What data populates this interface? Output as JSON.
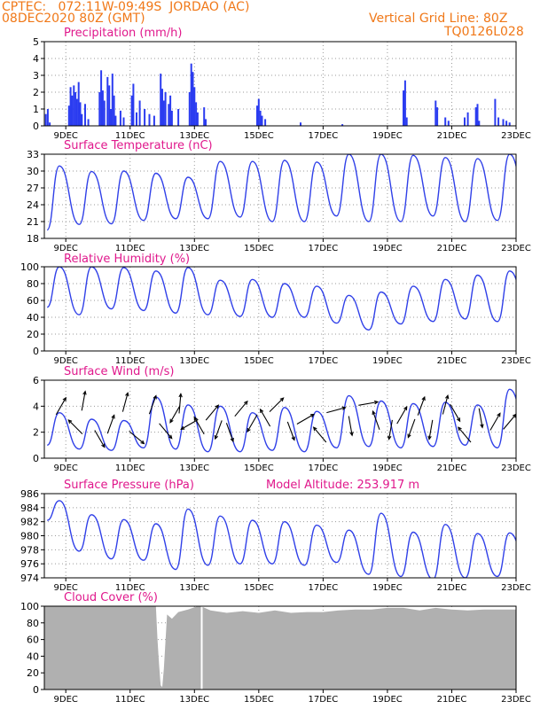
{
  "header": {
    "line1": "CPTEC:   072:11W-09:49S  JORDAO (AC)",
    "line2": "08DEC2020 80Z (GMT)",
    "right1": "Vertical Grid Line: 80Z",
    "right2": "TQ0126L028"
  },
  "colors": {
    "header": "#f07818",
    "title": "#e0188c",
    "precip": "#2b3cf0",
    "line": "#3040e8",
    "cloud": "#b0b0b0",
    "arrow": "#000000"
  },
  "x_axis": {
    "labels": [
      "9DEC",
      "11DEC",
      "13DEC",
      "15DEC",
      "17DEC",
      "19DEC",
      "21DEC",
      "23DEC"
    ],
    "label_days": [
      9,
      11,
      13,
      15,
      17,
      19,
      21,
      23
    ],
    "start_day": 8.333,
    "end_day": 23.0
  },
  "chart_data": [
    {
      "id": "precip",
      "type": "bar",
      "title": "Precipitation (mm/h)",
      "ylim": [
        0,
        5
      ],
      "yticks": [
        "0",
        "1",
        "2",
        "3",
        "4",
        "5"
      ],
      "points": [
        [
          8.38,
          0.7
        ],
        [
          8.44,
          1.0
        ],
        [
          8.5,
          0.2
        ],
        [
          9.1,
          1.2
        ],
        [
          9.15,
          2.3
        ],
        [
          9.2,
          1.8
        ],
        [
          9.25,
          2.4
        ],
        [
          9.3,
          2.0
        ],
        [
          9.35,
          1.6
        ],
        [
          9.4,
          2.6
        ],
        [
          9.45,
          1.4
        ],
        [
          9.5,
          0.7
        ],
        [
          9.6,
          1.3
        ],
        [
          9.7,
          0.4
        ],
        [
          10.05,
          2.0
        ],
        [
          10.1,
          3.3
        ],
        [
          10.15,
          2.1
        ],
        [
          10.2,
          1.5
        ],
        [
          10.3,
          2.9
        ],
        [
          10.35,
          2.4
        ],
        [
          10.4,
          1.0
        ],
        [
          10.45,
          3.1
        ],
        [
          10.5,
          1.8
        ],
        [
          10.55,
          0.6
        ],
        [
          10.7,
          0.9
        ],
        [
          10.8,
          0.5
        ],
        [
          11.05,
          1.8
        ],
        [
          11.1,
          2.5
        ],
        [
          11.2,
          0.8
        ],
        [
          11.3,
          1.5
        ],
        [
          11.45,
          1.0
        ],
        [
          11.6,
          0.7
        ],
        [
          11.75,
          0.6
        ],
        [
          11.95,
          3.1
        ],
        [
          12.0,
          2.2
        ],
        [
          12.05,
          1.5
        ],
        [
          12.1,
          2.0
        ],
        [
          12.2,
          1.3
        ],
        [
          12.25,
          1.8
        ],
        [
          12.3,
          0.9
        ],
        [
          12.5,
          1.0
        ],
        [
          12.85,
          2.0
        ],
        [
          12.9,
          3.7
        ],
        [
          12.95,
          3.2
        ],
        [
          13.0,
          2.3
        ],
        [
          13.05,
          1.4
        ],
        [
          13.1,
          0.8
        ],
        [
          13.3,
          1.1
        ],
        [
          13.35,
          0.4
        ],
        [
          14.95,
          1.2
        ],
        [
          15.0,
          1.6
        ],
        [
          15.05,
          0.9
        ],
        [
          15.1,
          0.6
        ],
        [
          15.2,
          0.4
        ],
        [
          16.3,
          0.2
        ],
        [
          17.6,
          0.1
        ],
        [
          19.5,
          2.1
        ],
        [
          19.55,
          2.7
        ],
        [
          19.6,
          0.5
        ],
        [
          20.5,
          1.5
        ],
        [
          20.55,
          1.1
        ],
        [
          20.8,
          0.5
        ],
        [
          20.9,
          0.3
        ],
        [
          21.4,
          0.5
        ],
        [
          21.5,
          0.8
        ],
        [
          21.75,
          1.1
        ],
        [
          21.8,
          1.3
        ],
        [
          21.85,
          0.3
        ],
        [
          22.35,
          1.6
        ],
        [
          22.45,
          0.5
        ],
        [
          22.6,
          0.4
        ],
        [
          22.7,
          0.3
        ],
        [
          22.8,
          0.2
        ]
      ]
    },
    {
      "id": "temp",
      "type": "line",
      "title": "Surface Temperature (nC)",
      "ylim": [
        18,
        33
      ],
      "yticks": [
        "18",
        "21",
        "24",
        "27",
        "30",
        "33"
      ],
      "daily_min": [
        19.5,
        20.5,
        20.6,
        21.2,
        21.5,
        21.5,
        21.8,
        21.0,
        21.0,
        22.0,
        21.0,
        21.0,
        22.0,
        21.0,
        21.2,
        22.0
      ],
      "daily_max": [
        30.9,
        29.9,
        30.0,
        29.6,
        28.9,
        31.7,
        31.7,
        31.9,
        31.6,
        33.0,
        33.0,
        32.8,
        32.4,
        32.2,
        33.0,
        32.0
      ]
    },
    {
      "id": "rh",
      "type": "line",
      "title": "Relative Humidity (%)",
      "ylim": [
        0,
        100
      ],
      "yticks": [
        "0",
        "20",
        "40",
        "60",
        "80",
        "100"
      ],
      "daily_min": [
        52,
        43,
        50,
        48,
        45,
        43,
        41,
        40,
        40,
        33,
        25,
        32,
        35,
        38,
        35,
        42
      ],
      "daily_max": [
        100,
        100,
        99,
        95,
        99,
        84,
        85,
        80,
        77,
        66,
        70,
        77,
        85,
        90,
        95,
        75
      ]
    },
    {
      "id": "wind",
      "type": "line",
      "title": "Surface Wind (m/s)",
      "ylim": [
        0,
        6
      ],
      "yticks": [
        "0",
        "2",
        "4",
        "6"
      ],
      "vectors": [
        [
          8.85,
          4.0,
          30
        ],
        [
          9.3,
          2.4,
          -45
        ],
        [
          9.55,
          4.4,
          10
        ],
        [
          10.05,
          1.5,
          150
        ],
        [
          10.4,
          2.6,
          20
        ],
        [
          10.85,
          4.3,
          15
        ],
        [
          11.2,
          1.6,
          130
        ],
        [
          11.7,
          4.1,
          20
        ],
        [
          12.1,
          2.1,
          140
        ],
        [
          12.4,
          3.4,
          -150
        ],
        [
          12.55,
          4.2,
          5
        ],
        [
          12.85,
          2.6,
          -120
        ],
        [
          13.15,
          2.5,
          -30
        ],
        [
          13.55,
          3.5,
          40
        ],
        [
          13.75,
          2.2,
          -160
        ],
        [
          14.1,
          2.0,
          160
        ],
        [
          14.45,
          3.8,
          40
        ],
        [
          14.8,
          2.7,
          -150
        ],
        [
          15.2,
          3.1,
          -30
        ],
        [
          15.55,
          4.1,
          45
        ],
        [
          16.0,
          2.1,
          160
        ],
        [
          16.45,
          3.0,
          60
        ],
        [
          16.9,
          1.8,
          -40
        ],
        [
          17.4,
          3.7,
          75
        ],
        [
          17.85,
          2.5,
          170
        ],
        [
          18.4,
          4.2,
          80
        ],
        [
          18.65,
          2.9,
          -20
        ],
        [
          19.1,
          2.2,
          -170
        ],
        [
          19.45,
          3.3,
          30
        ],
        [
          19.75,
          2.3,
          -160
        ],
        [
          20.05,
          4.0,
          20
        ],
        [
          20.35,
          2.2,
          -170
        ],
        [
          20.8,
          4.1,
          15
        ],
        [
          21.1,
          3.5,
          150
        ],
        [
          21.4,
          1.8,
          -40
        ],
        [
          21.9,
          3.1,
          170
        ],
        [
          22.35,
          2.8,
          30
        ],
        [
          22.8,
          2.8,
          40
        ]
      ],
      "daily_min": [
        1.0,
        0.7,
        0.6,
        0.8,
        0.7,
        0.5,
        0.5,
        0.6,
        0.5,
        0.8,
        0.9,
        0.8,
        0.9,
        1.0,
        0.8,
        1.5
      ],
      "daily_max": [
        3.5,
        3.0,
        2.9,
        4.7,
        4.1,
        4.0,
        3.5,
        3.9,
        3.6,
        4.8,
        4.4,
        4.2,
        4.3,
        4.1,
        5.3,
        3.5
      ]
    },
    {
      "id": "pres",
      "type": "line",
      "title": "Surface Pressure (hPa)",
      "subtitle": "Model Altitude: 253.917 m",
      "ylim": [
        974,
        986
      ],
      "yticks": [
        "974",
        "976",
        "978",
        "980",
        "982",
        "984",
        "986"
      ],
      "daily_min": [
        982.2,
        977.8,
        976.7,
        976.5,
        975.2,
        975.8,
        976.0,
        976.0,
        975.8,
        976.2,
        974.5,
        974.2,
        973.8,
        974.0,
        974.2,
        974.5
      ],
      "daily_max": [
        985.0,
        983.0,
        982.3,
        981.7,
        983.8,
        982.8,
        982.2,
        982.0,
        981.5,
        980.8,
        983.2,
        980.5,
        981.6,
        980.3,
        980.4,
        980.6
      ]
    },
    {
      "id": "cloud",
      "type": "bar",
      "title": "Cloud Cover (%)",
      "ylim": [
        0,
        100
      ],
      "yticks": [
        "0",
        "20",
        "40",
        "60",
        "80",
        "100"
      ],
      "fill_levels": [
        [
          8.333,
          100
        ],
        [
          11.8,
          100
        ],
        [
          11.85,
          60
        ],
        [
          11.9,
          30
        ],
        [
          11.95,
          5
        ],
        [
          12.0,
          3
        ],
        [
          12.05,
          25
        ],
        [
          12.15,
          90
        ],
        [
          12.3,
          85
        ],
        [
          12.5,
          93
        ],
        [
          12.8,
          96
        ],
        [
          13.1,
          100
        ],
        [
          13.2,
          100
        ],
        [
          13.5,
          95
        ],
        [
          14.0,
          92
        ],
        [
          14.5,
          94
        ],
        [
          15.0,
          92
        ],
        [
          15.5,
          95
        ],
        [
          16.0,
          92
        ],
        [
          16.5,
          93
        ],
        [
          17.0,
          93
        ],
        [
          17.5,
          95
        ],
        [
          18.0,
          96
        ],
        [
          18.5,
          96
        ],
        [
          19.0,
          98
        ],
        [
          19.5,
          98
        ],
        [
          20.0,
          95
        ],
        [
          20.5,
          98
        ],
        [
          21.0,
          96
        ],
        [
          21.5,
          95
        ],
        [
          22.0,
          96
        ],
        [
          22.5,
          96
        ],
        [
          23.0,
          96
        ]
      ]
    }
  ]
}
